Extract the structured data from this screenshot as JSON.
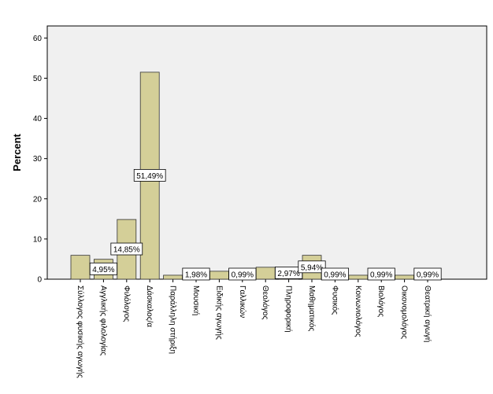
{
  "chart_data": {
    "type": "bar",
    "y_label": "Percent",
    "categories": [
      "Σύλλογος φυσικής αγωγής",
      "Αγγλικής φιλολογίας",
      "Φιλόλογος",
      "Δάσκαλος/α",
      "Παράλληλη στήριξη",
      "Μουσική",
      "Ειδικής αγωγής",
      "Γαλλικών",
      "Θεολόγος",
      "Πληροφορική",
      "Μαθηματικός",
      "Φυσικός",
      "Κοινωνιολόγος",
      "Βιολόγος",
      "Οικονομολόγος",
      "Θεατρική αγωγή"
    ],
    "values": [
      5.94,
      4.95,
      14.85,
      51.49,
      0.99,
      1.98,
      1.98,
      0.99,
      2.97,
      2.97,
      5.94,
      0.99,
      0.99,
      0.99,
      0.99,
      0.99
    ],
    "value_labels": [
      null,
      "4,95%",
      "14,85%",
      "51,49%",
      null,
      "1,98%",
      null,
      "0,99%",
      null,
      "2,97%",
      "5,94%",
      "0,99%",
      null,
      "0,99%",
      null,
      "0,99%"
    ],
    "color": "#d4cf98",
    "ylim": [
      0,
      63
    ],
    "yticks": [
      0,
      10,
      20,
      30,
      40,
      50,
      60
    ]
  }
}
